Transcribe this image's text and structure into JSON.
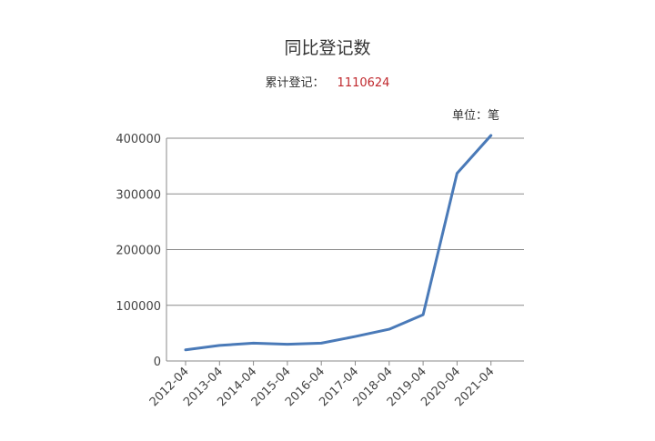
{
  "title": "同比登记数",
  "cumulative_label": "累计登记：",
  "cumulative_value": "1110624",
  "unit_label": "单位：笔",
  "series_color": "#4a7ab8",
  "chart_data": {
    "type": "line",
    "categories": [
      "2012-04",
      "2013-04",
      "2014-04",
      "2015-04",
      "2016-04",
      "2017-04",
      "2018-04",
      "2019-04",
      "2020-04",
      "2021-04"
    ],
    "series": [
      {
        "values": [
          20000,
          28000,
          32000,
          30000,
          32000,
          44000,
          57000,
          83000,
          337000,
          405000
        ]
      }
    ],
    "y_ticks": [
      "0",
      "100000",
      "200000",
      "300000",
      "400000"
    ],
    "ylim": [
      0,
      400000
    ],
    "grid": true,
    "legend": "none"
  }
}
